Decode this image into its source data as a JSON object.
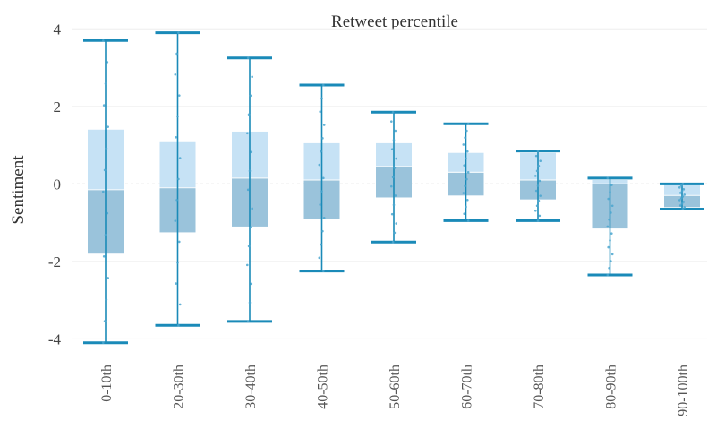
{
  "chart_data": {
    "type": "box",
    "title": "Retweet percentile",
    "ylabel": "Sentiment",
    "xlabel": "",
    "ylim": [
      -4.5,
      4.4
    ],
    "yticks": [
      4,
      2,
      0,
      -2,
      -4
    ],
    "grid": true,
    "colors": {
      "upper_box": "#c6e2f5",
      "lower_box": "#9ac3db",
      "whisker": "#1a8ab8",
      "points": "#4aa6cf",
      "grid": "#eeeeee",
      "zero_line": "#b5b5b5"
    },
    "categories": [
      "0-10th",
      "20-30th",
      "30-40th",
      "40-50th",
      "50-60th",
      "60-70th",
      "70-80th",
      "80-90th",
      "90-100th"
    ],
    "boxes": [
      {
        "whisker_low": -4.1,
        "q1": -1.8,
        "median": -0.15,
        "q3": 1.4,
        "whisker_high": 3.7
      },
      {
        "whisker_low": -3.65,
        "q1": -1.25,
        "median": -0.1,
        "q3": 1.1,
        "whisker_high": 3.9
      },
      {
        "whisker_low": -3.55,
        "q1": -1.1,
        "median": 0.15,
        "q3": 1.35,
        "whisker_high": 3.25
      },
      {
        "whisker_low": -2.25,
        "q1": -0.9,
        "median": 0.1,
        "q3": 1.05,
        "whisker_high": 2.55
      },
      {
        "whisker_low": -1.5,
        "q1": -0.35,
        "median": 0.45,
        "q3": 1.05,
        "whisker_high": 1.85
      },
      {
        "whisker_low": -0.95,
        "q1": -0.3,
        "median": 0.3,
        "q3": 0.8,
        "whisker_high": 1.55
      },
      {
        "whisker_low": -0.95,
        "q1": -0.4,
        "median": 0.1,
        "q3": 0.8,
        "whisker_high": 0.85
      },
      {
        "whisker_low": -2.35,
        "q1": -1.15,
        "median": 0.0,
        "q3": 0.1,
        "whisker_high": 0.15
      },
      {
        "whisker_low": -0.65,
        "q1": -0.6,
        "median": -0.3,
        "q3": 0.0,
        "whisker_high": 0.0
      }
    ]
  }
}
